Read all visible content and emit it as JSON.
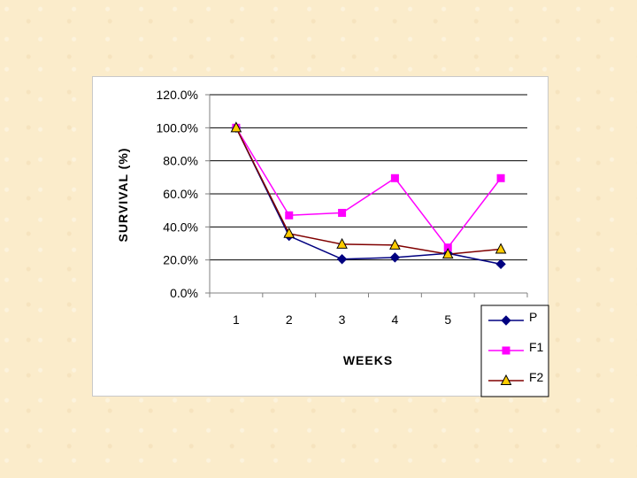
{
  "chart_data": {
    "type": "line",
    "xlabel": "WEEKS",
    "ylabel": "SURVIVAL (%)",
    "categories": [
      "1",
      "2",
      "3",
      "4",
      "5",
      "6"
    ],
    "ylim": [
      0,
      120
    ],
    "ytick_labels": [
      "0.0%",
      "20.0%",
      "40.0%",
      "60.0%",
      "80.0%",
      "100.0%",
      "120.0%"
    ],
    "grid": true,
    "legend_position": "bottom-right",
    "series": [
      {
        "name": "P",
        "color": "#000080",
        "marker": "diamond",
        "values": [
          100,
          34.5,
          20.5,
          21.5,
          24,
          17.5
        ]
      },
      {
        "name": "F1",
        "color": "#ff00ff",
        "marker": "square",
        "values": [
          100,
          47,
          48.5,
          69.5,
          27.5,
          69.5
        ]
      },
      {
        "name": "F2",
        "color": "#800000",
        "marker": "triangle",
        "marker_fill": "#ffcc00",
        "values": [
          100,
          36,
          29.5,
          29,
          23.5,
          26.5
        ]
      }
    ]
  }
}
